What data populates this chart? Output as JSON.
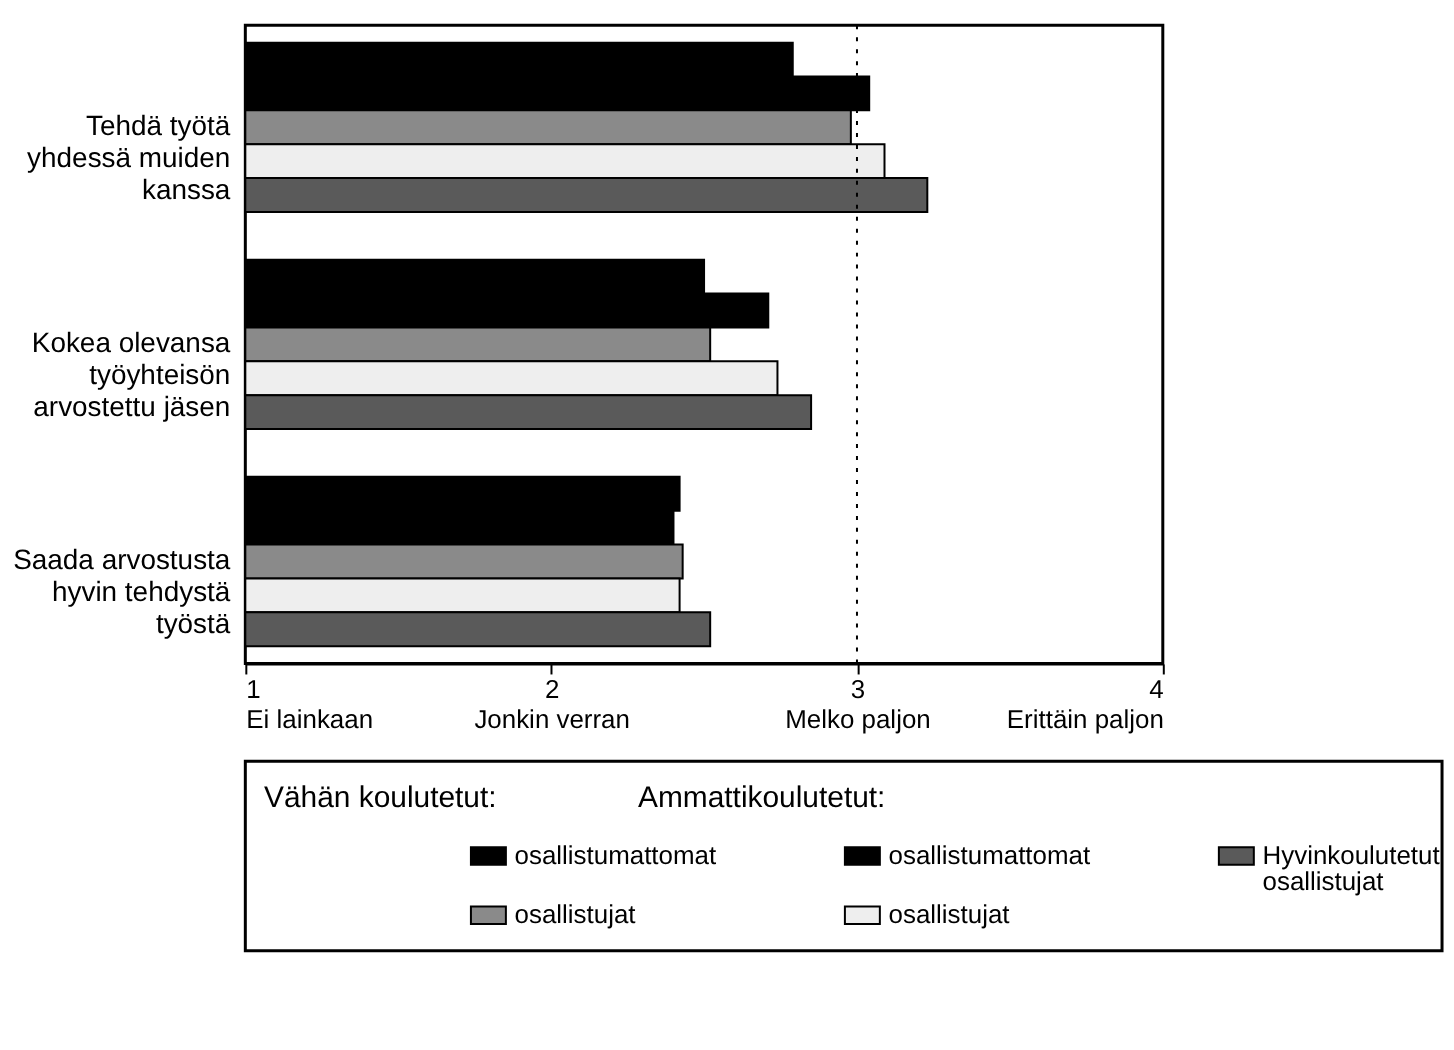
{
  "chart_data": {
    "type": "bar",
    "orientation": "horizontal",
    "categories": [
      "Tehdä työtä yhdessä muiden kanssa",
      "Kokea olevansa työyhteisön arvostettu jäsen",
      "Saada arvostusta hyvin tehdystä työstä"
    ],
    "series": [
      {
        "name": "osallistumattomat",
        "color": "#000000",
        "values": [
          2.79,
          2.5,
          2.42
        ]
      },
      {
        "name": "osallistumattomat",
        "color": "#000000",
        "values": [
          3.04,
          2.71,
          2.4
        ]
      },
      {
        "name": "osallistujat",
        "color": "#8a8a8a",
        "values": [
          2.98,
          2.52,
          2.43
        ]
      },
      {
        "name": "osallistujat",
        "color": "#eeeeee",
        "values": [
          3.09,
          2.74,
          2.42
        ]
      },
      {
        "name": "Hyvinkoulutetut osallistujat",
        "color": "#5a5a5a",
        "values": [
          3.23,
          2.85,
          2.52
        ]
      }
    ],
    "xlim": [
      1,
      4
    ],
    "xticks": [
      {
        "value": 1,
        "label": "1\nEi lainkaan"
      },
      {
        "value": 2,
        "label": "2\nJonkin verran"
      },
      {
        "value": 3,
        "label": "3\nMelko paljon"
      },
      {
        "value": 4,
        "label": "4\nErittäin paljon"
      }
    ],
    "ref_lines": [
      {
        "axis": "x",
        "value": 3,
        "line_style": "dotted"
      }
    ],
    "annotations": [
      "Vähän koulutetut:",
      "Ammattikoulutetut:"
    ],
    "legend": "bottom"
  }
}
